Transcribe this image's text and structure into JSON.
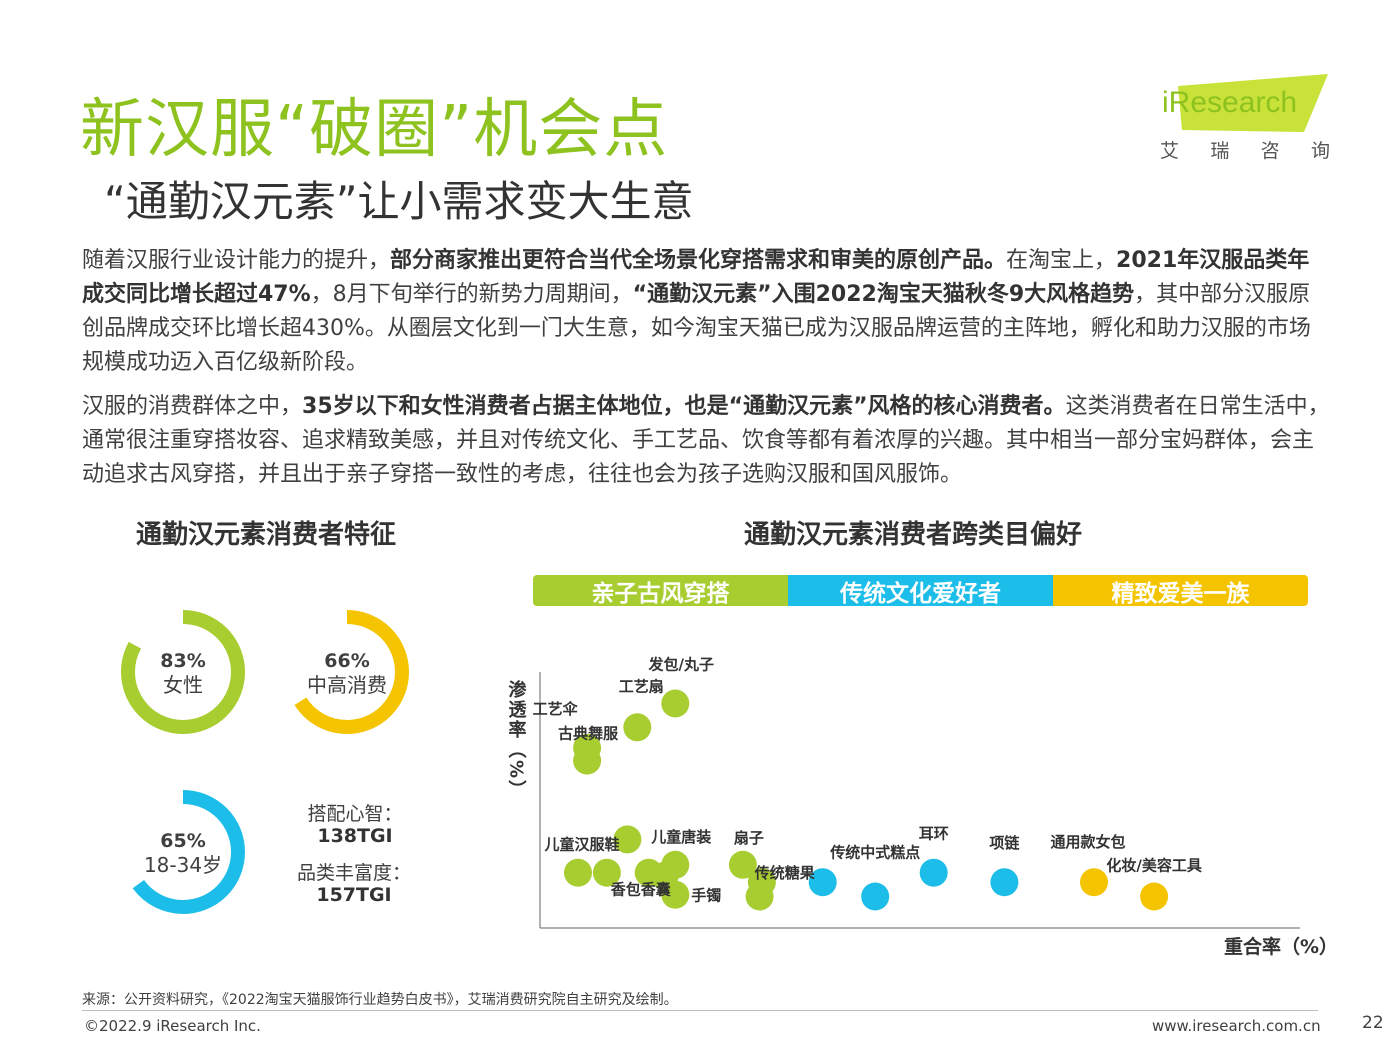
{
  "header": {
    "title": "新汉服“破圈”机会点",
    "subtitle": "“通勤汉元素”让小需求变大生意",
    "logo_text": "iResearch",
    "logo_cn": [
      "艾",
      "瑞",
      "咨",
      "询"
    ]
  },
  "paragraph1": {
    "s1": "随着汉服行业设计能力的提升，",
    "b1": "部分商家推出更符合当代全场景化穿搭需求和审美的原创产品。",
    "s2": "在淘宝上，",
    "b2": "2021年汉服品类年成交同比增长超过47%",
    "s3": "，8月下旬举行的新势力周期间，",
    "b3": "“通勤汉元素”入围2022淘宝天猫秋冬9大风格趋势",
    "s4": "，其中部分汉服原创品牌成交环比增长超430%。从圈层文化到一门大生意，如今淘宝天猫已成为汉服品牌运营的主阵地，孵化和助力汉服的市场规模成功迈入百亿级新阶段。"
  },
  "paragraph2": {
    "s1": "汉服的消费群体之中，",
    "b1": "35岁以下和女性消费者占据主体地位，也是“通勤汉元素”风格的核心消费者。",
    "s2": "这类消费者在日常生活中，通常很注重穿搭妆容、追求精致美感，并且对传统文化、手工艺品、饮食等都有着浓厚的兴趣。其中相当一部分宝妈群体，会主动追求古风穿搭，并且出于亲子穿搭一致性的考虑，往往也会为孩子选购汉服和国风服饰。"
  },
  "left_panel": {
    "title": "通勤汉元素消费者特征",
    "rings": [
      {
        "pct_label": "83%",
        "label": "女性",
        "value": 83,
        "color": "#a8cd30"
      },
      {
        "pct_label": "66%",
        "label": "中高消费",
        "value": 66,
        "color": "#f5c400"
      },
      {
        "pct_label": "65%",
        "label": "18-34岁",
        "value": 65,
        "color": "#1dbde9"
      }
    ],
    "tgi": [
      {
        "label": "搭配心智：",
        "value": "138TGI"
      },
      {
        "label": "品类丰富度：",
        "value": "157TGI"
      }
    ]
  },
  "chart_data": {
    "type": "scatter",
    "title": "通勤汉元素消费者跨类目偏好",
    "xlabel": "重合率（%）",
    "ylabel": "渗透率（%）",
    "grid": false,
    "axis_ticks": false,
    "categories": [
      {
        "name": "亲子古风穿搭",
        "color": "#a8cd30"
      },
      {
        "name": "传统文化爱好者",
        "color": "#1dbde9"
      },
      {
        "name": "精致爱美一族",
        "color": "#f5c400"
      }
    ],
    "points": [
      {
        "label": "发包/丸子",
        "x": 17.8,
        "y": 87.7,
        "group": 0
      },
      {
        "label": "工艺扇",
        "x": 12.8,
        "y": 78.4,
        "group": 0
      },
      {
        "label": "工艺伞",
        "x": 6.2,
        "y": 70.4,
        "group": 0
      },
      {
        "label": "古典舞服",
        "x": 6.2,
        "y": 65.4,
        "group": 0
      },
      {
        "label": "",
        "x": 11.5,
        "y": 34.6,
        "group": 0
      },
      {
        "label": "儿童汉服鞋",
        "x": 5.0,
        "y": 21.6,
        "group": 0
      },
      {
        "label": "",
        "x": 8.8,
        "y": 21.6,
        "group": 0
      },
      {
        "label": "香包香囊",
        "x": 14.3,
        "y": 21.6,
        "group": 0
      },
      {
        "label": "",
        "x": 16.4,
        "y": 20.4,
        "group": 0
      },
      {
        "label": "儿童唐装",
        "x": 17.8,
        "y": 24.7,
        "group": 0
      },
      {
        "label": "手镯",
        "x": 17.8,
        "y": 13.0,
        "group": 0
      },
      {
        "label": "扇子",
        "x": 26.7,
        "y": 24.7,
        "group": 0
      },
      {
        "label": "",
        "x": 29.2,
        "y": 17.9,
        "group": 0
      },
      {
        "label": "",
        "x": 28.9,
        "y": 12.3,
        "group": 0
      },
      {
        "label": "传统糖果",
        "x": 37.2,
        "y": 17.9,
        "group": 1
      },
      {
        "label": "传统中式糕点",
        "x": 44.1,
        "y": 12.3,
        "group": 1
      },
      {
        "label": "耳环",
        "x": 51.8,
        "y": 21.6,
        "group": 1
      },
      {
        "label": "项链",
        "x": 61.1,
        "y": 17.9,
        "group": 1
      },
      {
        "label": "通用款女包",
        "x": 72.9,
        "y": 17.9,
        "group": 2
      },
      {
        "label": "化妆/美容工具",
        "x": 80.8,
        "y": 12.3,
        "group": 2
      }
    ]
  },
  "footer": {
    "source": "来源：公开资料研究，《2022淘宝天猫服饰行业趋势白皮书》，艾瑞消费研究院自主研究及绘制。",
    "copyright": "©2022.9 iResearch Inc.",
    "website": "www.iresearch.com.cn",
    "page": "22"
  }
}
